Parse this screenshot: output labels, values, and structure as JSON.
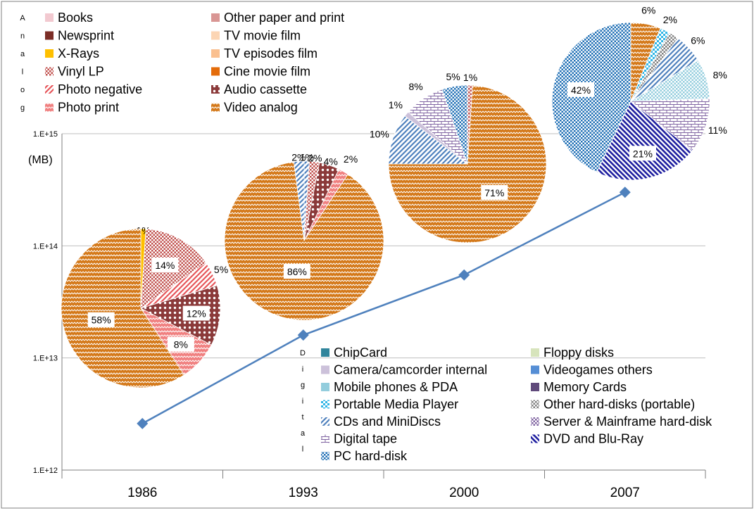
{
  "colors": {
    "pattern_orange": "#D4791A",
    "line": "#4F81BD",
    "grid": "#BFBFBF",
    "frame": "#7F7F7F"
  },
  "chart_data": {
    "type": "line",
    "title": "",
    "xlabel": "",
    "ylabel": "(MB)",
    "y_scale": "log",
    "ylim": [
      1000000000000.0,
      1000000000000000.0
    ],
    "y_ticks": [
      {
        "label": "1.E+12",
        "value": 1000000000000.0
      },
      {
        "label": "1.E+13",
        "value": 10000000000000.0
      },
      {
        "label": "1.E+14",
        "value": 100000000000000.0
      },
      {
        "label": "1.E+15",
        "value": 1000000000000000.0
      }
    ],
    "categories": [
      "1986",
      "1993",
      "2000",
      "2007"
    ],
    "series": [
      {
        "values": [
          2600000000000.0,
          16000000000000.0,
          55000000000000.0,
          300000000000000.0
        ]
      }
    ],
    "analog_legend_title": "Analog",
    "digital_legend_title": "Digital",
    "analog_legend": [
      {
        "label": "Books",
        "color": "#F2C9D0",
        "pattern": "solid"
      },
      {
        "label": "Other paper and print",
        "color": "#D99694",
        "pattern": "solid"
      },
      {
        "label": "Newsprint",
        "color": "#7B2D26",
        "pattern": "solid"
      },
      {
        "label": "TV movie film",
        "color": "#FCD5B4",
        "pattern": "solid"
      },
      {
        "label": "X-Rays",
        "color": "#FFC000",
        "pattern": "solid"
      },
      {
        "label": "TV episodes film",
        "color": "#FAC090",
        "pattern": "solid"
      },
      {
        "label": "Vinyl LP",
        "color": "#C0504D",
        "pattern": "dots"
      },
      {
        "label": "Cine movie film",
        "color": "#E46C0A",
        "pattern": "solid"
      },
      {
        "label": "Photo negative",
        "color": "#E6565A",
        "pattern": "diag"
      },
      {
        "label": "Audio cassette",
        "color": "#8B3A3A",
        "pattern": "circles"
      },
      {
        "label": "Photo print",
        "color": "#F08080",
        "pattern": "zigzag"
      },
      {
        "label": "Video analog",
        "color": "#D4791A",
        "pattern": "zigzag"
      }
    ],
    "digital_legend": [
      {
        "label": "ChipCard",
        "color": "#31859C",
        "pattern": "solid"
      },
      {
        "label": "Floppy disks",
        "color": "#D7E4BC",
        "pattern": "solid"
      },
      {
        "label": "Camera/camcorder internal",
        "color": "#CCC1DA",
        "pattern": "solid"
      },
      {
        "label": "Videogames others",
        "color": "#558ED5",
        "pattern": "solid"
      },
      {
        "label": "Mobile phones & PDA",
        "color": "#93CDDD",
        "pattern": "solid"
      },
      {
        "label": "Memory Cards",
        "color": "#604A7B",
        "pattern": "solid"
      },
      {
        "label": "Portable Media Player",
        "color": "#31B6E6",
        "pattern": "check"
      },
      {
        "label": "Other hard-disks (portable)",
        "color": "#7F7F7F",
        "pattern": "dots"
      },
      {
        "label": "CDs and MiniDiscs",
        "color": "#4F81BD",
        "pattern": "diag"
      },
      {
        "label": "Server & Mainframe hard-disk",
        "color": "#8064A2",
        "pattern": "dots"
      },
      {
        "label": "Digital tape",
        "color": "#8064A2",
        "pattern": "brick"
      },
      {
        "label": "DVD and Blu-Ray",
        "color": "#1F1FA0",
        "pattern": "diag2"
      },
      {
        "label": "PC hard-disk",
        "color": "#1F6FB5",
        "pattern": "dots"
      }
    ],
    "pies": [
      {
        "year": "1986",
        "slices": [
          {
            "label": "1%",
            "value": 1,
            "color": "#FFC000",
            "pattern": "solid"
          },
          {
            "label": "14%",
            "value": 14,
            "color": "#C0504D",
            "pattern": "dots"
          },
          {
            "label": "5%",
            "value": 5,
            "color": "#E6565A",
            "pattern": "diag"
          },
          {
            "label": "12%",
            "value": 12,
            "color": "#8B3A3A",
            "pattern": "circles"
          },
          {
            "label": "8%",
            "value": 8,
            "color": "#F08080",
            "pattern": "zigzag"
          },
          {
            "label": "58%",
            "value": 58,
            "color": "#D4791A",
            "pattern": "zigzag"
          }
        ]
      },
      {
        "year": "1993",
        "slices": [
          {
            "label": "1%",
            "value": 1,
            "color": "#4F81BD",
            "pattern": "diag"
          },
          {
            "label": "2%",
            "value": 2,
            "color": "#C0504D",
            "pattern": "dots"
          },
          {
            "label": "4%",
            "value": 4,
            "color": "#8B3A3A",
            "pattern": "circles"
          },
          {
            "label": "2%",
            "value": 2,
            "color": "#F08080",
            "pattern": "zigzag"
          },
          {
            "label": "86%",
            "value": 86,
            "color": "#D4791A",
            "pattern": "zigzag"
          },
          {
            "label": "2%",
            "value": 2,
            "color": "#4F81BD",
            "pattern": "diag"
          }
        ]
      },
      {
        "year": "2000",
        "slices": [
          {
            "label": "1%",
            "value": 1,
            "color": "#C0504D",
            "pattern": "dots"
          },
          {
            "label": "71%",
            "value": 71,
            "color": "#D4791A",
            "pattern": "zigzag"
          },
          {
            "label": "10%",
            "value": 10,
            "color": "#4F81BD",
            "pattern": "diag"
          },
          {
            "label": "1%",
            "value": 1,
            "color": "#CCC1DA",
            "pattern": "solid"
          },
          {
            "label": "8%",
            "value": 8,
            "color": "#8064A2",
            "pattern": "brick"
          },
          {
            "label": "5%",
            "value": 5,
            "color": "#1F6FB5",
            "pattern": "dots"
          }
        ]
      },
      {
        "year": "2007",
        "slices": [
          {
            "label": "6%",
            "value": 6,
            "color": "#D4791A",
            "pattern": "zigzag"
          },
          {
            "label": "2%",
            "value": 2,
            "color": "#31B6E6",
            "pattern": "check"
          },
          {
            "label": "",
            "value": 2,
            "color": "#7F7F7F",
            "pattern": "dots"
          },
          {
            "label": "6%",
            "value": 6,
            "color": "#4F81BD",
            "pattern": "diag"
          },
          {
            "label": "8%",
            "value": 8,
            "color": "#93CDDD",
            "pattern": "dots"
          },
          {
            "label": "11%",
            "value": 11,
            "color": "#8064A2",
            "pattern": "brick"
          },
          {
            "label": "21%",
            "value": 21,
            "color": "#1F1FA0",
            "pattern": "diag2"
          },
          {
            "label": "42%",
            "value": 42,
            "color": "#1F6FB5",
            "pattern": "dots"
          }
        ]
      }
    ]
  }
}
